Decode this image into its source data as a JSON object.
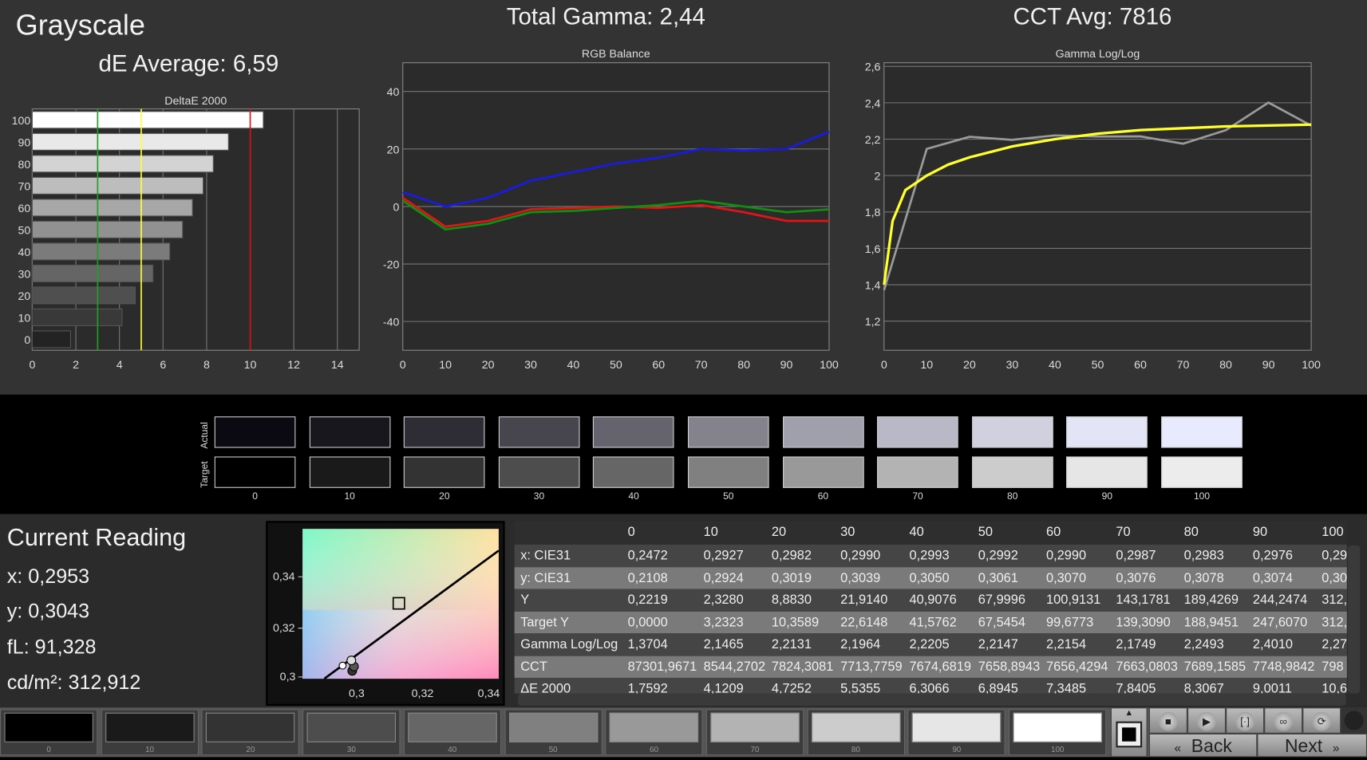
{
  "header": {
    "title": "Grayscale",
    "de_average": "dE Average: 6,59",
    "total_gamma": "Total Gamma: 2,44",
    "cct_avg": "CCT Avg: 7816"
  },
  "colors": {
    "background": "#333333",
    "red": "#e01010",
    "green": "#109010",
    "blue": "#1010e0",
    "yellow": "#ffff30",
    "gray_line": "#9a9a9a"
  },
  "chart_data": [
    {
      "type": "bar",
      "title": "DeltaE 2000",
      "orientation": "horizontal",
      "categories": [
        "100",
        "90",
        "80",
        "70",
        "60",
        "50",
        "40",
        "30",
        "20",
        "10",
        "0"
      ],
      "values": [
        10.6,
        9.0011,
        8.3067,
        7.8405,
        7.3485,
        6.8945,
        6.3066,
        5.5355,
        4.7252,
        4.1209,
        1.7592
      ],
      "xlim": [
        0,
        15
      ],
      "xticks": [
        "0",
        "2",
        "4",
        "6",
        "8",
        "10",
        "12",
        "14"
      ],
      "reference_lines": [
        {
          "x": 3,
          "color": "#20a020"
        },
        {
          "x": 5,
          "color": "#ffff30"
        },
        {
          "x": 10,
          "color": "#e01010"
        }
      ],
      "grid": true
    },
    {
      "type": "line",
      "title": "RGB Balance",
      "x": [
        0,
        10,
        20,
        30,
        40,
        50,
        60,
        70,
        80,
        90,
        100
      ],
      "ylim": [
        -50,
        50
      ],
      "yticks": [
        "40",
        "20",
        "0",
        "-20",
        "-40"
      ],
      "xticks": [
        "0",
        "10",
        "20",
        "30",
        "40",
        "50",
        "60",
        "70",
        "80",
        "90",
        "100"
      ],
      "grid": true,
      "series": [
        {
          "color": "#1a1ae6",
          "values": [
            5,
            0,
            3,
            9,
            12,
            15,
            17,
            20,
            19.5,
            20,
            26
          ]
        },
        {
          "color": "#e01515",
          "values": [
            3,
            -7,
            -5,
            -1,
            -0.5,
            0,
            -0.5,
            0.5,
            -2,
            -5,
            -5
          ]
        },
        {
          "color": "#109010",
          "values": [
            2,
            -8,
            -6,
            -2,
            -1.5,
            -0.5,
            0.5,
            2,
            0,
            -2,
            -1
          ]
        }
      ]
    },
    {
      "type": "line",
      "title": "Gamma Log/Log",
      "ylim": [
        1.04,
        2.62
      ],
      "grid": true,
      "yticks": [
        "2,6",
        "2,4",
        "2,2",
        "2",
        "1,8",
        "1,6",
        "1,4",
        "1,2"
      ],
      "xticks": [
        "0",
        "10",
        "20",
        "30",
        "40",
        "50",
        "60",
        "70",
        "80",
        "90",
        "100"
      ],
      "series": [
        {
          "color": "#9a9a9a",
          "x": [
            0,
            10,
            20,
            30,
            40,
            50,
            60,
            70,
            80,
            90,
            100
          ],
          "values": [
            1.3704,
            2.1465,
            2.2131,
            2.1964,
            2.2205,
            2.2147,
            2.2154,
            2.1749,
            2.2493,
            2.401,
            2.274
          ]
        },
        {
          "color": "#ffff30",
          "x": [
            0,
            2,
            5,
            10,
            15,
            20,
            30,
            40,
            50,
            60,
            70,
            80,
            90,
            100
          ],
          "values": [
            1.4,
            1.75,
            1.92,
            2.0,
            2.06,
            2.1,
            2.16,
            2.2,
            2.23,
            2.25,
            2.26,
            2.27,
            2.275,
            2.28
          ]
        }
      ]
    }
  ],
  "swatches": {
    "actual_label": "Actual",
    "target_label": "Target",
    "levels": [
      "0",
      "10",
      "20",
      "30",
      "40",
      "50",
      "60",
      "70",
      "80",
      "90",
      "100"
    ],
    "actual": [
      "#0b0a12",
      "#18171e",
      "#2e2d36",
      "#47464f",
      "#65646e",
      "#83828d",
      "#a09fac",
      "#b9b8c6",
      "#d0d0de",
      "#e3e4f6",
      "#e8ebfd"
    ],
    "target": [
      "#000000",
      "#1a1a1a",
      "#333333",
      "#4d4d4d",
      "#666666",
      "#808080",
      "#999999",
      "#b3b3b3",
      "#cccccc",
      "#e6e6e6",
      "#ececec"
    ]
  },
  "reading": {
    "title": "Current Reading",
    "x": "x: 0,2953",
    "y": "y: 0,3043",
    "fl": "fL: 91,328",
    "cdm2": "cd/m²: 312,912"
  },
  "cie": {
    "yticks": [
      "0,34",
      "0,32",
      "0,3"
    ],
    "xticks": [
      "0,3",
      "0,32",
      "0,34"
    ]
  },
  "table": {
    "columns": [
      "",
      "0",
      "10",
      "20",
      "30",
      "40",
      "50",
      "60",
      "70",
      "80",
      "90",
      "100"
    ],
    "rows": [
      [
        "x: CIE31",
        "0,2472",
        "0,2927",
        "0,2982",
        "0,2990",
        "0,2993",
        "0,2992",
        "0,2990",
        "0,2987",
        "0,2983",
        "0,2976",
        "0,29"
      ],
      [
        "y: CIE31",
        "0,2108",
        "0,2924",
        "0,3019",
        "0,3039",
        "0,3050",
        "0,3061",
        "0,3070",
        "0,3076",
        "0,3078",
        "0,3074",
        "0,30"
      ],
      [
        "Y",
        "0,2219",
        "2,3280",
        "8,8830",
        "21,9140",
        "40,9076",
        "67,9996",
        "100,9131",
        "143,1781",
        "189,4269",
        "244,2474",
        "312,"
      ],
      [
        "Target Y",
        "0,0000",
        "3,2323",
        "10,3589",
        "22,6148",
        "41,5762",
        "67,5454",
        "99,6773",
        "139,3090",
        "188,9451",
        "247,6070",
        "312,"
      ],
      [
        "Gamma Log/Log",
        "1,3704",
        "2,1465",
        "2,2131",
        "2,1964",
        "2,2205",
        "2,2147",
        "2,2154",
        "2,1749",
        "2,2493",
        "2,4010",
        "2,27"
      ],
      [
        "CCT",
        "87301,9671",
        "8544,2702",
        "7824,3081",
        "7713,7759",
        "7674,6819",
        "7658,8943",
        "7656,4294",
        "7663,0803",
        "7689,1585",
        "7748,9842",
        "798"
      ],
      [
        "ΔE 2000",
        "1,7592",
        "4,1209",
        "4,7252",
        "5,5355",
        "6,3066",
        "6,8945",
        "7,3485",
        "7,8405",
        "8,3067",
        "9,0011",
        "10,6"
      ]
    ]
  },
  "patches": {
    "labels": [
      "0",
      "10",
      "20",
      "30",
      "40",
      "50",
      "60",
      "70",
      "80",
      "90",
      "100"
    ],
    "colors": [
      "#000000",
      "#1a1a1a",
      "#333333",
      "#4d4d4d",
      "#666666",
      "#808080",
      "#999999",
      "#b3b3b3",
      "#cccccc",
      "#e6e6e6",
      "#ffffff"
    ]
  },
  "nav": {
    "back": "Back",
    "next": "Next"
  }
}
